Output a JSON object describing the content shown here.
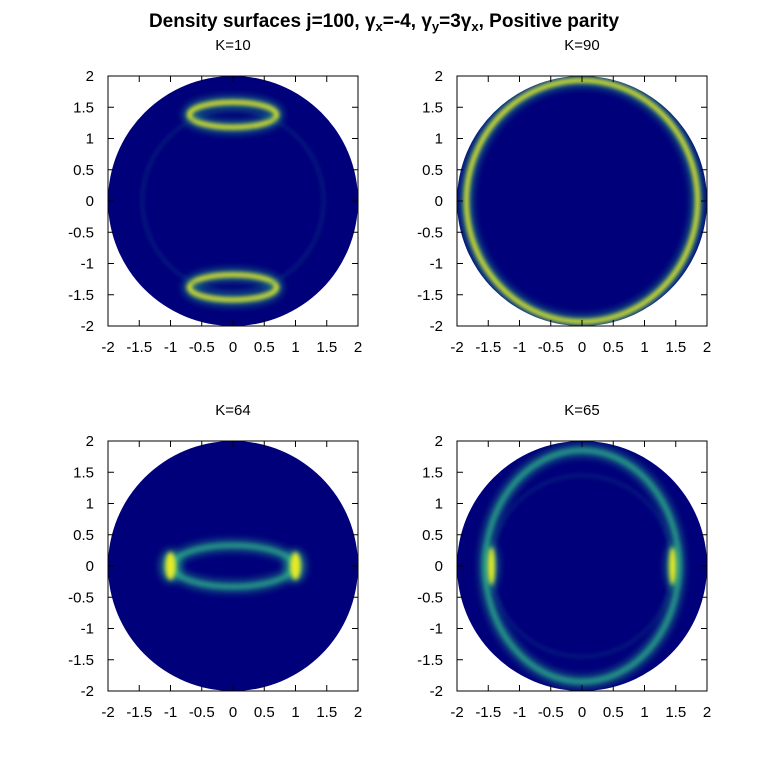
{
  "figure": {
    "title_main": "Density surfaces j=100, ",
    "title_gamma": "γ",
    "title_sub_x": "x",
    "title_part2": "=-4, ",
    "title_sub_y": "y",
    "title_part3": "=3",
    "title_part4": ", Positive parity"
  },
  "colors": {
    "background_inside": "#00007a",
    "ring_low": "#1e6e8c",
    "ring_mid": "#2eb88a",
    "ring_high": "#f0f020"
  },
  "chart_data": [
    {
      "type": "heatmap",
      "title": "K=10",
      "xlim": [
        -2,
        2
      ],
      "ylim": [
        -2,
        2
      ],
      "xticks": [
        -2,
        -1.5,
        -1,
        -0.5,
        0,
        0.5,
        1,
        1.5,
        2
      ],
      "yticks": [
        -2,
        -1.5,
        -1,
        -0.5,
        0,
        0.5,
        1,
        1.5,
        2
      ],
      "xtick_labels": [
        "-2",
        "-1.5",
        "-1",
        "-0.5",
        "0",
        "0.5",
        "1",
        "1.5",
        "2"
      ],
      "ytick_labels": [
        "-2",
        "-1.5",
        "-1",
        "-0.5",
        "0",
        "0.5",
        "1",
        "1.5",
        "2"
      ],
      "domain": "disk of radius 2",
      "features": [
        {
          "shape": "ellipse",
          "cx": 0,
          "cy": 1.38,
          "rx": 0.7,
          "ry": 0.2,
          "intensity": 0.85
        },
        {
          "shape": "ellipse",
          "cx": 0,
          "cy": -1.38,
          "rx": 0.7,
          "ry": 0.2,
          "intensity": 0.85
        },
        {
          "shape": "ellipse",
          "cx": 0,
          "cy": 0,
          "rx": 1.45,
          "ry": 1.45,
          "intensity": 0.06
        }
      ]
    },
    {
      "type": "heatmap",
      "title": "K=90",
      "xlim": [
        -2,
        2
      ],
      "ylim": [
        -2,
        2
      ],
      "xticks": [
        -2,
        -1.5,
        -1,
        -0.5,
        0,
        0.5,
        1,
        1.5,
        2
      ],
      "yticks": [
        -2,
        -1.5,
        -1,
        -0.5,
        0,
        0.5,
        1,
        1.5,
        2
      ],
      "xtick_labels": [
        "-2",
        "-1.5",
        "-1",
        "-0.5",
        "0",
        "0.5",
        "1",
        "1.5",
        "2"
      ],
      "ytick_labels": [
        "-2",
        "-1.5",
        "-1",
        "-0.5",
        "0",
        "0.5",
        "1",
        "1.5",
        "2"
      ],
      "domain": "disk of radius 2",
      "features": [
        {
          "shape": "ellipse",
          "cx": 0,
          "cy": 0,
          "rx": 1.85,
          "ry": 1.93,
          "intensity": 0.9
        }
      ]
    },
    {
      "type": "heatmap",
      "title": "K=64",
      "xlim": [
        -2,
        2
      ],
      "ylim": [
        -2,
        2
      ],
      "xticks": [
        -2,
        -1.5,
        -1,
        -0.5,
        0,
        0.5,
        1,
        1.5,
        2
      ],
      "yticks": [
        -2,
        -1.5,
        -1,
        -0.5,
        0,
        0.5,
        1,
        1.5,
        2
      ],
      "xtick_labels": [
        "-2",
        "-1.5",
        "-1",
        "-0.5",
        "0",
        "0.5",
        "1",
        "1.5",
        "2"
      ],
      "ytick_labels": [
        "-2",
        "-1.5",
        "-1",
        "-0.5",
        "0",
        "0.5",
        "1",
        "1.5",
        "2"
      ],
      "domain": "disk of radius 2",
      "features": [
        {
          "shape": "ellipse",
          "cx": 0,
          "cy": 0,
          "rx": 0.97,
          "ry": 0.33,
          "intensity": 0.55
        },
        {
          "shape": "spot",
          "cx": -1.0,
          "cy": 0,
          "rx": 0.12,
          "ry": 0.22,
          "intensity": 1.0
        },
        {
          "shape": "spot",
          "cx": 1.0,
          "cy": 0,
          "rx": 0.12,
          "ry": 0.22,
          "intensity": 1.0
        }
      ]
    },
    {
      "type": "heatmap",
      "title": "K=65",
      "xlim": [
        -2,
        2
      ],
      "ylim": [
        -2,
        2
      ],
      "xticks": [
        -2,
        -1.5,
        -1,
        -0.5,
        0,
        0.5,
        1,
        1.5,
        2
      ],
      "yticks": [
        -2,
        -1.5,
        -1,
        -0.5,
        0,
        0.5,
        1,
        1.5,
        2
      ],
      "xtick_labels": [
        "-2",
        "-1.5",
        "-1",
        "-0.5",
        "0",
        "0.5",
        "1",
        "1.5",
        "2"
      ],
      "ytick_labels": [
        "-2",
        "-1.5",
        "-1",
        "-0.5",
        "0",
        "0.5",
        "1",
        "1.5",
        "2"
      ],
      "domain": "disk of radius 2",
      "features": [
        {
          "shape": "ellipse",
          "cx": 0,
          "cy": 0,
          "rx": 1.55,
          "ry": 1.85,
          "intensity": 0.45
        },
        {
          "shape": "ellipse",
          "cx": 0,
          "cy": 0,
          "rx": 1.45,
          "ry": 1.45,
          "intensity": 0.06
        },
        {
          "shape": "spot",
          "cx": -1.45,
          "cy": 0,
          "rx": 0.08,
          "ry": 0.3,
          "intensity": 0.95
        },
        {
          "shape": "spot",
          "cx": 1.45,
          "cy": 0,
          "rx": 0.08,
          "ry": 0.3,
          "intensity": 0.95
        }
      ]
    }
  ]
}
